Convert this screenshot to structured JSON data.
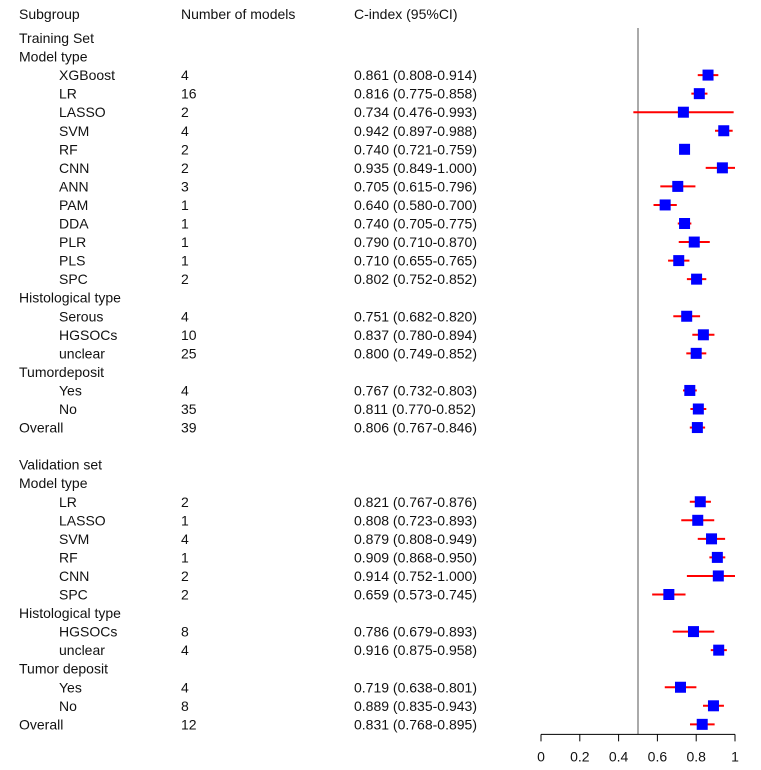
{
  "chart_data": {
    "type": "forest",
    "headers": {
      "subgroup": "Subgroup",
      "n_models": "Number of models",
      "cindex": "C-index (95%CI)"
    },
    "reference_line": 0.5,
    "xlim": [
      0,
      1
    ],
    "ticks": [
      0,
      0.2,
      0.4,
      0.6,
      0.8,
      1
    ],
    "tick_labels": [
      "0",
      "0.2",
      "0.4",
      "0.6",
      "0.8",
      "1"
    ],
    "colors": {
      "point": "#0000ff",
      "ci": "#ff0000",
      "reference": "#555555",
      "axis": "#000000"
    },
    "rows": [
      {
        "label": "Training Set",
        "kind": "header"
      },
      {
        "label": "Model type",
        "kind": "header"
      },
      {
        "label": "XGBoost",
        "kind": "data",
        "n": "4",
        "ci_text": "0.861 (0.808-0.914)",
        "est": 0.861,
        "lo": 0.808,
        "hi": 0.914
      },
      {
        "label": "LR",
        "kind": "data",
        "n": "16",
        "ci_text": "0.816 (0.775-0.858)",
        "est": 0.816,
        "lo": 0.775,
        "hi": 0.858
      },
      {
        "label": "LASSO",
        "kind": "data",
        "n": "2",
        "ci_text": "0.734 (0.476-0.993)",
        "est": 0.734,
        "lo": 0.476,
        "hi": 0.993
      },
      {
        "label": "SVM",
        "kind": "data",
        "n": "4",
        "ci_text": "0.942 (0.897-0.988)",
        "est": 0.942,
        "lo": 0.897,
        "hi": 0.988
      },
      {
        "label": "RF",
        "kind": "data",
        "n": "2",
        "ci_text": "0.740 (0.721-0.759)",
        "est": 0.74,
        "lo": 0.721,
        "hi": 0.759
      },
      {
        "label": "CNN",
        "kind": "data",
        "n": "2",
        "ci_text": "0.935 (0.849-1.000)",
        "est": 0.935,
        "lo": 0.849,
        "hi": 1.0
      },
      {
        "label": "ANN",
        "kind": "data",
        "n": "3",
        "ci_text": "0.705 (0.615-0.796)",
        "est": 0.705,
        "lo": 0.615,
        "hi": 0.796
      },
      {
        "label": "PAM",
        "kind": "data",
        "n": "1",
        "ci_text": "0.640 (0.580-0.700)",
        "est": 0.64,
        "lo": 0.58,
        "hi": 0.7
      },
      {
        "label": "DDA",
        "kind": "data",
        "n": "1",
        "ci_text": "0.740 (0.705-0.775)",
        "est": 0.74,
        "lo": 0.705,
        "hi": 0.775
      },
      {
        "label": "PLR",
        "kind": "data",
        "n": "1",
        "ci_text": "0.790 (0.710-0.870)",
        "est": 0.79,
        "lo": 0.71,
        "hi": 0.87
      },
      {
        "label": "PLS",
        "kind": "data",
        "n": "1",
        "ci_text": "0.710 (0.655-0.765)",
        "est": 0.71,
        "lo": 0.655,
        "hi": 0.765
      },
      {
        "label": "SPC",
        "kind": "data",
        "n": "2",
        "ci_text": "0.802 (0.752-0.852)",
        "est": 0.802,
        "lo": 0.752,
        "hi": 0.852
      },
      {
        "label": "Histological type",
        "kind": "header"
      },
      {
        "label": "Serous",
        "kind": "data",
        "n": "4",
        "ci_text": "0.751 (0.682-0.820)",
        "est": 0.751,
        "lo": 0.682,
        "hi": 0.82
      },
      {
        "label": "HGSOCs",
        "kind": "data",
        "n": "10",
        "ci_text": "0.837 (0.780-0.894)",
        "est": 0.837,
        "lo": 0.78,
        "hi": 0.894
      },
      {
        "label": "unclear",
        "kind": "data",
        "n": "25",
        "ci_text": "0.800 (0.749-0.852)",
        "est": 0.8,
        "lo": 0.749,
        "hi": 0.852
      },
      {
        "label": "Tumordeposit",
        "kind": "header"
      },
      {
        "label": "Yes",
        "kind": "data",
        "n": "4",
        "ci_text": "0.767 (0.732-0.803)",
        "est": 0.767,
        "lo": 0.732,
        "hi": 0.803
      },
      {
        "label": "No",
        "kind": "data",
        "n": "35",
        "ci_text": "0.811 (0.770-0.852)",
        "est": 0.811,
        "lo": 0.77,
        "hi": 0.852
      },
      {
        "label": "Overall",
        "kind": "overall",
        "n": "39",
        "ci_text": "0.806 (0.767-0.846)",
        "est": 0.806,
        "lo": 0.767,
        "hi": 0.846
      },
      {
        "label": "",
        "kind": "spacer"
      },
      {
        "label": "Validation set",
        "kind": "header"
      },
      {
        "label": "Model type",
        "kind": "header"
      },
      {
        "label": "LR",
        "kind": "data",
        "n": "2",
        "ci_text": "0.821 (0.767-0.876)",
        "est": 0.821,
        "lo": 0.767,
        "hi": 0.876
      },
      {
        "label": "LASSO",
        "kind": "data",
        "n": "1",
        "ci_text": "0.808 (0.723-0.893)",
        "est": 0.808,
        "lo": 0.723,
        "hi": 0.893
      },
      {
        "label": "SVM",
        "kind": "data",
        "n": "4",
        "ci_text": "0.879 (0.808-0.949)",
        "est": 0.879,
        "lo": 0.808,
        "hi": 0.949
      },
      {
        "label": "RF",
        "kind": "data",
        "n": "1",
        "ci_text": "0.909 (0.868-0.950)",
        "est": 0.909,
        "lo": 0.868,
        "hi": 0.95
      },
      {
        "label": "CNN",
        "kind": "data",
        "n": "2",
        "ci_text": "0.914 (0.752-1.000)",
        "est": 0.914,
        "lo": 0.752,
        "hi": 1.0
      },
      {
        "label": "SPC",
        "kind": "data",
        "n": "2",
        "ci_text": "0.659 (0.573-0.745)",
        "est": 0.659,
        "lo": 0.573,
        "hi": 0.745
      },
      {
        "label": "Histological type",
        "kind": "header"
      },
      {
        "label": "HGSOCs",
        "kind": "data",
        "n": "8",
        "ci_text": "0.786 (0.679-0.893)",
        "est": 0.786,
        "lo": 0.679,
        "hi": 0.893
      },
      {
        "label": "unclear",
        "kind": "data",
        "n": "4",
        "ci_text": "0.916 (0.875-0.958)",
        "est": 0.916,
        "lo": 0.875,
        "hi": 0.958
      },
      {
        "label": "Tumor deposit",
        "kind": "header"
      },
      {
        "label": "Yes",
        "kind": "data",
        "n": "4",
        "ci_text": "0.719 (0.638-0.801)",
        "est": 0.719,
        "lo": 0.638,
        "hi": 0.801
      },
      {
        "label": "No",
        "kind": "data",
        "n": "8",
        "ci_text": "0.889 (0.835-0.943)",
        "est": 0.889,
        "lo": 0.835,
        "hi": 0.943
      },
      {
        "label": "Overall",
        "kind": "overall",
        "n": "12",
        "ci_text": "0.831 (0.768-0.895)",
        "est": 0.831,
        "lo": 0.768,
        "hi": 0.895
      }
    ]
  }
}
